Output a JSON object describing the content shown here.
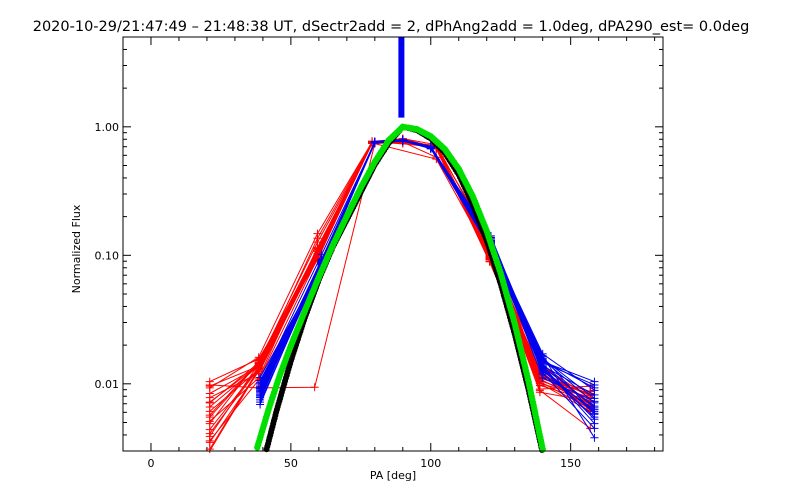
{
  "chart_data": {
    "type": "line",
    "title": "2020-10-29/21:47:49 – 21:48:38 UT, dSectr2add = 2, dPhAng2add = 1.0deg, dPA290_est=  0.0deg",
    "xlabel": "PA [deg]",
    "ylabel": "Normalized Flux",
    "xlim": [
      -10,
      183
    ],
    "ylim": [
      0.003,
      5
    ],
    "yscale": "log",
    "x_tick_labels": [
      "0",
      "50",
      "100",
      "150"
    ],
    "x_tick_values": [
      0,
      50,
      100,
      150
    ],
    "y_tick_labels": [
      "0.01",
      "0.10",
      "1.00"
    ],
    "y_tick_values": [
      0.01,
      0.1,
      1.0
    ],
    "grid": false,
    "vertical_marker": {
      "x": 89.5,
      "y_from": 1.18,
      "y_to": 5,
      "color": "#0000ee"
    },
    "fits": [
      {
        "color": "#000000",
        "x": [
          40,
          45,
          50,
          55,
          60,
          65,
          70,
          75,
          80,
          85,
          90,
          95,
          100,
          105,
          110,
          115,
          120,
          125,
          130,
          135,
          140,
          144
        ],
        "y": [
          0.0024,
          0.0063,
          0.0151,
          0.0328,
          0.0649,
          0.1164,
          0.1898,
          0.3107,
          0.5091,
          0.7483,
          1.0,
          0.9427,
          0.8108,
          0.6294,
          0.4246,
          0.2505,
          0.1304,
          0.0599,
          0.0244,
          0.0089,
          0.0029,
          0.0019
        ]
      },
      {
        "color": "#00e000",
        "x": [
          38,
          42,
          46,
          50,
          55,
          60,
          65,
          70,
          75,
          80,
          85,
          90,
          95,
          100,
          105,
          110,
          115,
          120,
          125,
          130,
          135,
          140,
          143
        ],
        "y": [
          0.0032,
          0.0063,
          0.0116,
          0.0198,
          0.0369,
          0.0677,
          0.1201,
          0.2015,
          0.3364,
          0.5332,
          0.7862,
          1.0,
          0.9592,
          0.8432,
          0.6709,
          0.4693,
          0.2878,
          0.1545,
          0.0724,
          0.0295,
          0.0103,
          0.0031,
          0.0018
        ]
      }
    ],
    "series": [
      {
        "color": "#ff0000",
        "x": [
          21,
          38.5,
          59.5,
          79,
          90,
          102,
          121,
          139,
          157
        ],
        "y": [
          0.0093,
          0.0161,
          0.1476,
          0.7598,
          0.7395,
          0.6919,
          0.1385,
          0.0089,
          0.0045
        ]
      },
      {
        "color": "#ff0000",
        "x": [
          21,
          38.5,
          59.5,
          79,
          90,
          102,
          121,
          139,
          157
        ],
        "y": [
          0.0071,
          0.0146,
          0.1268,
          0.7473,
          0.7603,
          0.5795,
          0.1117,
          0.0117,
          0.0066
        ]
      },
      {
        "color": "#ff0000",
        "x": [
          21,
          38.5,
          59.5,
          79,
          90,
          102,
          121,
          139,
          157
        ],
        "y": [
          0.0051,
          0.0111,
          0.1127,
          0.7705,
          0.8102,
          0.7244,
          0.1264,
          0.0115,
          0.0087
        ]
      },
      {
        "color": "#ff0000",
        "x": [
          21,
          38.5,
          59.5,
          79,
          90,
          102,
          121,
          139,
          157
        ],
        "y": [
          0.0036,
          0.0107,
          0.0946,
          0.7408,
          0.7621,
          0.7158,
          0.1039,
          0.0144,
          0.0068
        ]
      },
      {
        "color": "#ff0000",
        "x": [
          21,
          38.5,
          59.5,
          79,
          90,
          102,
          121,
          139,
          157
        ],
        "y": [
          0.0104,
          0.0156,
          0.0922,
          0.7742,
          0.7682,
          0.6815,
          0.0891,
          0.0111,
          0.0083
        ]
      },
      {
        "color": "#ff0000",
        "x": [
          21,
          38.5,
          59.5,
          79,
          90,
          102,
          121,
          139,
          157
        ],
        "y": [
          0.0061,
          0.0129,
          0.1001,
          0.7432,
          0.7553,
          0.6919,
          0.1044,
          0.0104,
          0.0064
        ]
      },
      {
        "color": "#ff0000",
        "x": [
          21,
          38.5,
          59.5,
          79,
          90,
          102,
          121,
          139,
          157
        ],
        "y": [
          0.0049,
          0.0152,
          0.1072,
          0.7685,
          0.7734,
          0.6749,
          0.0969,
          0.0091,
          0.0096
        ]
      },
      {
        "color": "#ff0000",
        "x": [
          21,
          38.5,
          59.5,
          79,
          90,
          102,
          121,
          139,
          157
        ],
        "y": [
          0.0084,
          0.0136,
          0.1358,
          0.7579,
          0.8058,
          0.6916,
          0.1128,
          0.0101,
          0.0078
        ]
      },
      {
        "color": "#ff0000",
        "x": [
          21,
          38.5,
          59.5,
          79,
          90,
          102,
          121,
          139,
          157
        ],
        "y": [
          0.0078,
          0.0121,
          0.0998,
          0.7516,
          0.8015,
          0.6825,
          0.1022,
          0.0109,
          0.0069
        ]
      },
      {
        "color": "#ff0000",
        "x": [
          21,
          38.5,
          59.5,
          79,
          90,
          102,
          121,
          139,
          157
        ],
        "y": [
          0.0096,
          0.0137,
          0.1106,
          0.7467,
          0.7813,
          0.7065,
          0.1017,
          0.0142,
          0.0077
        ]
      },
      {
        "color": "#ff0000",
        "x": [
          21,
          38.5,
          59.5,
          79,
          90,
          102,
          121,
          139,
          157
        ],
        "y": [
          0.0031,
          0.0131,
          0.1005,
          0.7655,
          0.7682,
          0.6875,
          0.0993,
          0.0086,
          0.0073
        ]
      },
      {
        "color": "#ff0000",
        "x": [
          21,
          38.5,
          59.5,
          79,
          90,
          102,
          121,
          139,
          157
        ],
        "y": [
          0.0044,
          0.0134,
          0.1081,
          0.7584,
          0.7854,
          0.6785,
          0.0939,
          0.0118,
          0.0081
        ]
      },
      {
        "color": "#ff0000",
        "x": [
          21,
          38.5,
          59.5,
          79,
          90,
          102,
          121,
          139,
          157
        ],
        "y": [
          0.0057,
          0.0148,
          0.0932,
          0.7507,
          0.7913,
          0.6749,
          0.0896,
          0.0101,
          0.0061
        ]
      },
      {
        "color": "#ff0000",
        "x": [
          21,
          38.5,
          59.5,
          79,
          90,
          102,
          121,
          139,
          157
        ],
        "y": [
          0.0066,
          0.0138,
          0.1035,
          0.7626,
          0.7755,
          0.6881,
          0.0954,
          0.0131,
          0.0071
        ]
      },
      {
        "color": "#ff0000",
        "x": [
          21,
          38.5,
          59.5,
          79,
          90,
          102,
          121,
          139,
          157
        ],
        "y": [
          0.0026,
          0.0128,
          0.1152,
          0.7546,
          0.7834,
          0.7022,
          0.1086,
          0.0116,
          0.0087
        ]
      },
      {
        "color": "#ff0000",
        "x": [
          21,
          38.5,
          59.5,
          79,
          90,
          102,
          121,
          139,
          157
        ],
        "y": [
          0.0039,
          0.0143,
          0.0987,
          0.7486,
          0.7659,
          0.6897,
          0.0919,
          0.0106,
          0.0078
        ]
      },
      {
        "color": "#ff0000",
        "x": [
          21,
          38.5,
          59.5,
          79,
          90,
          102,
          121,
          139,
          157
        ],
        "y": [
          0.0072,
          0.0139,
          0.1077,
          0.7565,
          0.7814,
          0.6936,
          0.0978,
          0.0123,
          0.0065
        ]
      },
      {
        "color": "#ff0000",
        "x": [
          21,
          38.5,
          59.5,
          79,
          90,
          102,
          121,
          139,
          157
        ],
        "y": [
          0.0035,
          0.0125,
          0.1013,
          0.7608,
          0.7795,
          0.6983,
          0.1046,
          0.0112,
          0.0084
        ]
      },
      {
        "color": "#ff0000",
        "x": [
          21,
          38.5,
          59.5,
          79,
          90,
          102,
          121,
          139,
          157
        ],
        "y": [
          0.0055,
          0.0145,
          0.1124,
          0.7538,
          0.7872,
          0.6769,
          0.0945,
          0.0097,
          0.0074
        ]
      },
      {
        "color": "#ff0000",
        "x": [
          21,
          38.5,
          59.5,
          79,
          90,
          102,
          121,
          139,
          157
        ],
        "y": [
          0.0041,
          0.0132,
          0.0963,
          0.7589,
          0.7735,
          0.6919,
          0.0937,
          0.0127,
          0.0062
        ]
      },
      {
        "color": "#ff0000",
        "x": [
          21,
          38.5,
          58.5,
          80,
          102,
          121
        ],
        "y": [
          0.0098,
          0.0093,
          0.0094,
          0.74,
          0.56,
          0.1
        ]
      },
      {
        "color": "#0000ee",
        "x": [
          39,
          61,
          80,
          90,
          100,
          121.5,
          140,
          158.5
        ],
        "y": [
          0.0102,
          0.1017,
          0.7589,
          0.7813,
          0.6815,
          0.1416,
          0.0138,
          0.0049
        ]
      },
      {
        "color": "#0000ee",
        "x": [
          39,
          61,
          80,
          90,
          100,
          121.5,
          140,
          158.5
        ],
        "y": [
          0.0081,
          0.0892,
          0.7695,
          0.7931,
          0.6876,
          0.1291,
          0.0154,
          0.0071
        ]
      },
      {
        "color": "#0000ee",
        "x": [
          39,
          61,
          80,
          90,
          100,
          121.5,
          140,
          158.5
        ],
        "y": [
          0.0069,
          0.0897,
          0.7466,
          0.7745,
          0.6922,
          0.1133,
          0.0126,
          0.0061
        ]
      },
      {
        "color": "#0000ee",
        "x": [
          39,
          61,
          80,
          90,
          100,
          121.5,
          140,
          158.5
        ],
        "y": [
          0.0112,
          0.0821,
          0.7628,
          0.7963,
          0.7028,
          0.1345,
          0.0133,
          0.0053
        ]
      },
      {
        "color": "#0000ee",
        "x": [
          39,
          61,
          80,
          90,
          100,
          121.5,
          140,
          158.5
        ],
        "y": [
          0.0092,
          0.0842,
          0.7578,
          0.7876,
          0.7063,
          0.1222,
          0.0171,
          0.0089
        ]
      },
      {
        "color": "#0000ee",
        "x": [
          39,
          61,
          80,
          90,
          100,
          121.5,
          140,
          158.5
        ],
        "y": [
          0.0072,
          0.0851,
          0.7527,
          0.7772,
          0.6742,
          0.1108,
          0.0142,
          0.0065
        ]
      },
      {
        "color": "#0000ee",
        "x": [
          39,
          61,
          80,
          90,
          100,
          121.5,
          140,
          158.5
        ],
        "y": [
          0.0089,
          0.0934,
          0.7604,
          0.7904,
          0.6787,
          0.1266,
          0.0111,
          0.0073
        ]
      },
      {
        "color": "#0000ee",
        "x": [
          39,
          61,
          80,
          90,
          100,
          121.5,
          140,
          158.5
        ],
        "y": [
          0.0101,
          0.0867,
          0.7495,
          0.7829,
          0.7014,
          0.1195,
          0.0162,
          0.0058
        ]
      },
      {
        "color": "#0000ee",
        "x": [
          39,
          61,
          80,
          90,
          100,
          121.5,
          140,
          158.5
        ],
        "y": [
          0.0078,
          0.0824,
          0.7658,
          0.7925,
          0.6965,
          0.1152,
          0.0122,
          0.0045
        ]
      },
      {
        "color": "#0000ee",
        "x": [
          39,
          61,
          80,
          90,
          100,
          121.5,
          140,
          158.5
        ],
        "y": [
          0.0095,
          0.0908,
          0.7552,
          0.7751,
          0.6843,
          0.1377,
          0.0149,
          0.0104
        ]
      },
      {
        "color": "#0000ee",
        "x": [
          39,
          61,
          80,
          90,
          100,
          121.5,
          140,
          158.5
        ],
        "y": [
          0.0083,
          0.0887,
          0.7615,
          0.7847,
          0.6894,
          0.1246,
          0.0135,
          0.0067
        ]
      },
      {
        "color": "#0000ee",
        "x": [
          39,
          61,
          80,
          90,
          100,
          121.5,
          140,
          158.5
        ],
        "y": [
          0.0106,
          0.0837,
          0.7483,
          0.7893,
          0.6953,
          0.1181,
          0.0157,
          0.0077
        ]
      },
      {
        "color": "#0000ee",
        "x": [
          39,
          61,
          80,
          90,
          100,
          121.5,
          140,
          158.5
        ],
        "y": [
          0.0075,
          0.0918,
          0.7642,
          0.7798,
          0.6814,
          0.1313,
          0.0128,
          0.0055
        ]
      },
      {
        "color": "#0000ee",
        "x": [
          39,
          61,
          80,
          90,
          100,
          121.5,
          140,
          158.5
        ],
        "y": [
          0.0087,
          0.0859,
          0.7571,
          0.7862,
          0.7045,
          0.1217,
          0.0146,
          0.0098
        ]
      },
      {
        "color": "#0000ee",
        "x": [
          39,
          61,
          80,
          90,
          100,
          121.5,
          140,
          158.5
        ],
        "y": [
          0.0098,
          0.0877,
          0.7511,
          0.7819,
          0.6908,
          0.1279,
          0.0138,
          0.0082
        ]
      },
      {
        "color": "#0000ee",
        "x": [
          39,
          61,
          80,
          90,
          100,
          121.5,
          140,
          158.5
        ],
        "y": [
          0.0079,
          0.0846,
          0.7635,
          0.7882,
          0.6871,
          0.1168,
          0.0165,
          0.0038
        ]
      },
      {
        "color": "#0000ee",
        "x": [
          39,
          61,
          80,
          90,
          100,
          121.5,
          140,
          158.5
        ],
        "y": [
          0.0091,
          0.0926,
          0.7587,
          0.7756,
          0.6989,
          0.1302,
          0.0119,
          0.0063
        ]
      },
      {
        "color": "#0000ee",
        "x": [
          39,
          61,
          80,
          90,
          100,
          121.5,
          140,
          158.5
        ],
        "y": [
          0.0085,
          0.0865,
          0.7545,
          0.7911,
          0.6827,
          0.1236,
          0.0152,
          0.0093
        ]
      },
      {
        "color": "#0000ee",
        "x": [
          39,
          61,
          80,
          90,
          100,
          121.5,
          140,
          158.5
        ],
        "y": [
          0.0094,
          0.0899,
          0.7623,
          0.7842,
          0.6936,
          0.1204,
          0.0131,
          0.0059
        ]
      }
    ]
  }
}
